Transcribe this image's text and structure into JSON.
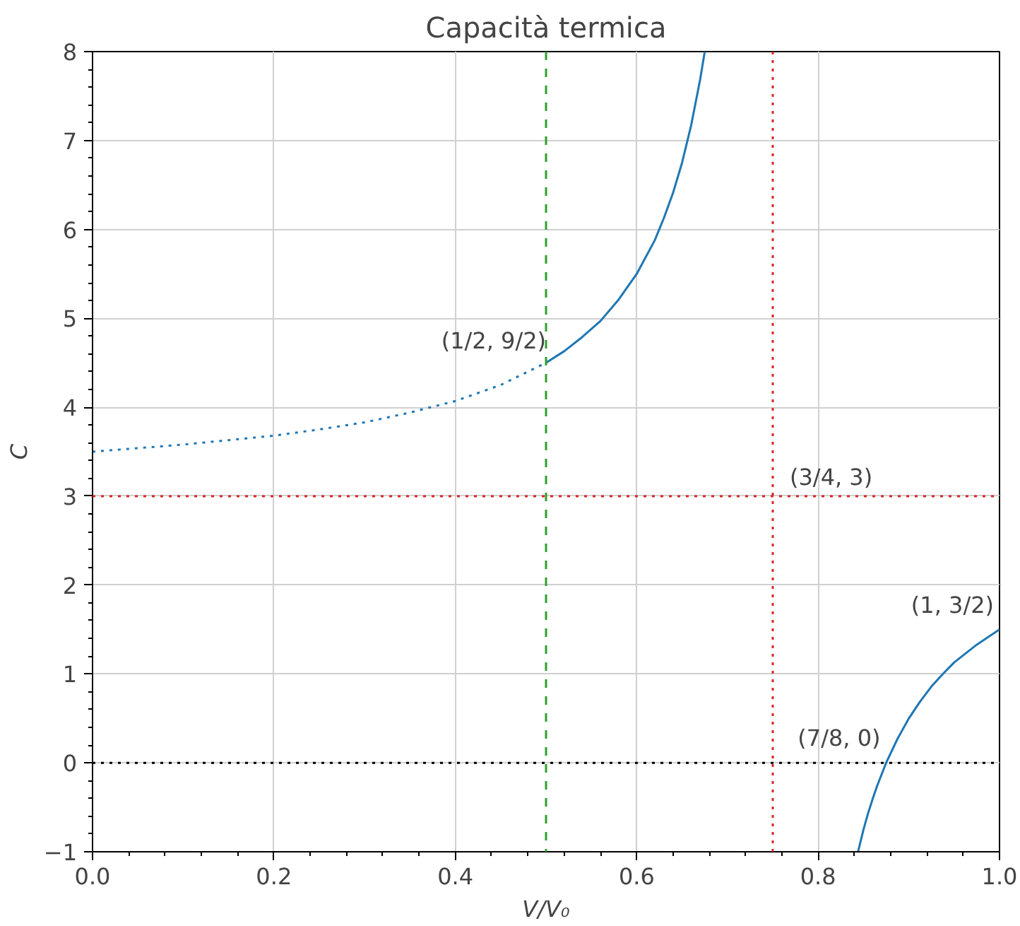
{
  "chart_data": {
    "type": "line",
    "title": "Capacità termica",
    "xlabel": "V/V₀",
    "ylabel": "C",
    "series": [
      {
        "color": "#1f77b4",
        "line_style": "dotted",
        "x": [
          0,
          0.05,
          0.1,
          0.15,
          0.2,
          0.25,
          0.3,
          0.35,
          0.4,
          0.45,
          0.5
        ],
        "values": [
          3.5,
          3.54,
          3.58,
          3.63,
          3.68,
          3.75,
          3.83,
          3.94,
          4.07,
          4.25,
          4.5
        ]
      },
      {
        "color": "#1f77b4",
        "line_style": "solid",
        "x": [
          0.5,
          0.52,
          0.54,
          0.56,
          0.58,
          0.6,
          0.62,
          0.63,
          0.64,
          0.65,
          0.66,
          0.67,
          0.675
        ],
        "values": [
          4.5,
          4.63,
          4.79,
          4.97,
          5.21,
          5.5,
          5.88,
          6.13,
          6.41,
          6.75,
          7.17,
          7.69,
          8
        ]
      },
      {
        "color": "#1f77b4",
        "line_style": "solid",
        "x": [
          0.844,
          0.85,
          0.855,
          0.86,
          0.865,
          0.87,
          0.875,
          0.8875,
          0.9,
          0.9125,
          0.925,
          0.9375,
          0.95,
          0.975,
          1.0
        ],
        "values": [
          -1,
          -0.75,
          -0.57,
          -0.41,
          -0.26,
          -0.13,
          0,
          0.27,
          0.5,
          0.69,
          0.86,
          1.0,
          1.13,
          1.33,
          1.5
        ]
      }
    ],
    "ref_lines": [
      {
        "axis": "x",
        "value": 0.5,
        "color": "#2ca02c",
        "line_style": "dashed"
      },
      {
        "axis": "x",
        "value": 0.75,
        "color": "#d62728",
        "line_style": "dotted"
      },
      {
        "axis": "y",
        "value": 3,
        "color": "#d62728",
        "line_style": "dotted"
      },
      {
        "axis": "y",
        "value": 0,
        "color": "#000000",
        "line_style": "dotted"
      }
    ],
    "annotations": [
      {
        "text": "(1/2, 9/2)",
        "x": 0.5,
        "y": 4.5
      },
      {
        "text": "(3/4, 3)",
        "x": 0.75,
        "y": 3
      },
      {
        "text": "(7/8, 0)",
        "x": 0.875,
        "y": 0
      },
      {
        "text": "(1, 3/2)",
        "x": 1,
        "y": 1.5
      }
    ],
    "xlim": [
      0,
      1
    ],
    "ylim": [
      -1,
      8
    ],
    "xticks": [
      {
        "value": 0,
        "label": "0.0"
      },
      {
        "value": 0.2,
        "label": "0.2"
      },
      {
        "value": 0.4,
        "label": "0.4"
      },
      {
        "value": 0.6,
        "label": "0.6"
      },
      {
        "value": 0.8,
        "label": "0.8"
      },
      {
        "value": 1,
        "label": "1.0"
      }
    ],
    "yticks": [
      {
        "value": -1,
        "label": "−1"
      },
      0,
      1,
      2,
      3,
      4,
      5,
      6,
      7,
      8
    ],
    "grid": true
  }
}
